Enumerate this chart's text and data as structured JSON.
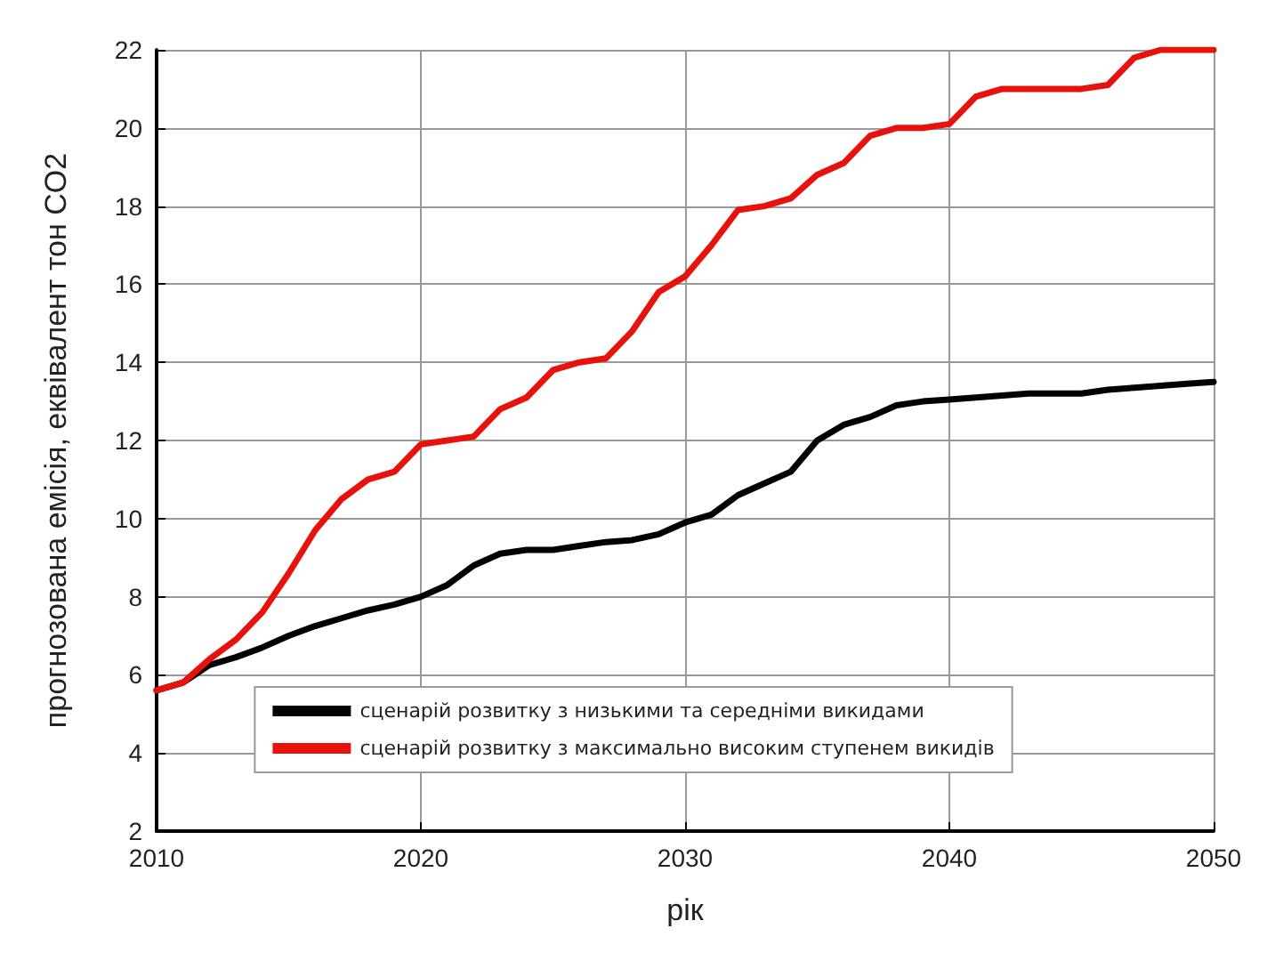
{
  "chart_data": {
    "type": "line",
    "xlabel": "рік",
    "ylabel": "прогнозована емісія, еквівалент тон CO2",
    "x": [
      2010,
      2011,
      2012,
      2013,
      2014,
      2015,
      2016,
      2017,
      2018,
      2019,
      2020,
      2021,
      2022,
      2023,
      2024,
      2025,
      2026,
      2027,
      2028,
      2029,
      2030,
      2031,
      2032,
      2033,
      2034,
      2035,
      2036,
      2037,
      2038,
      2039,
      2040,
      2041,
      2042,
      2043,
      2044,
      2045,
      2046,
      2047,
      2048,
      2049,
      2050
    ],
    "series": [
      {
        "name": "сценарій розвитку з низькими та середніми викидами",
        "color": "#000000",
        "values": [
          5.6,
          5.8,
          6.25,
          6.45,
          6.7,
          7.0,
          7.25,
          7.45,
          7.65,
          7.8,
          8.0,
          8.3,
          8.8,
          9.1,
          9.2,
          9.2,
          9.3,
          9.4,
          9.45,
          9.6,
          9.9,
          10.1,
          10.6,
          10.9,
          11.2,
          12.0,
          12.4,
          12.6,
          12.9,
          13.0,
          13.05,
          13.1,
          13.15,
          13.2,
          13.2,
          13.2,
          13.3,
          13.35,
          13.4,
          13.45,
          13.5
        ]
      },
      {
        "name": "сценарій розвитку з максимально високим ступенем викидів",
        "color": "#e8120c",
        "values": [
          5.6,
          5.8,
          6.4,
          6.9,
          7.6,
          8.6,
          9.7,
          10.5,
          11.0,
          11.2,
          11.9,
          12.0,
          12.1,
          12.8,
          13.1,
          13.8,
          14.0,
          14.1,
          14.8,
          15.8,
          16.2,
          17.0,
          17.9,
          18.0,
          18.2,
          18.8,
          19.1,
          19.8,
          20.0,
          20.0,
          20.1,
          20.8,
          21.0,
          21.0,
          21.0,
          21.0,
          21.1,
          21.8,
          22.0,
          22.0,
          22.0
        ]
      }
    ],
    "xlim": [
      2010,
      2050
    ],
    "xticks": [
      2010,
      2020,
      2030,
      2040,
      2050
    ],
    "ylim": [
      2,
      22
    ],
    "yticks": [
      2,
      4,
      6,
      8,
      10,
      12,
      14,
      16,
      18,
      20,
      22
    ],
    "grid": true,
    "legend": "bottom",
    "marker": "none",
    "line_style": "solid"
  }
}
